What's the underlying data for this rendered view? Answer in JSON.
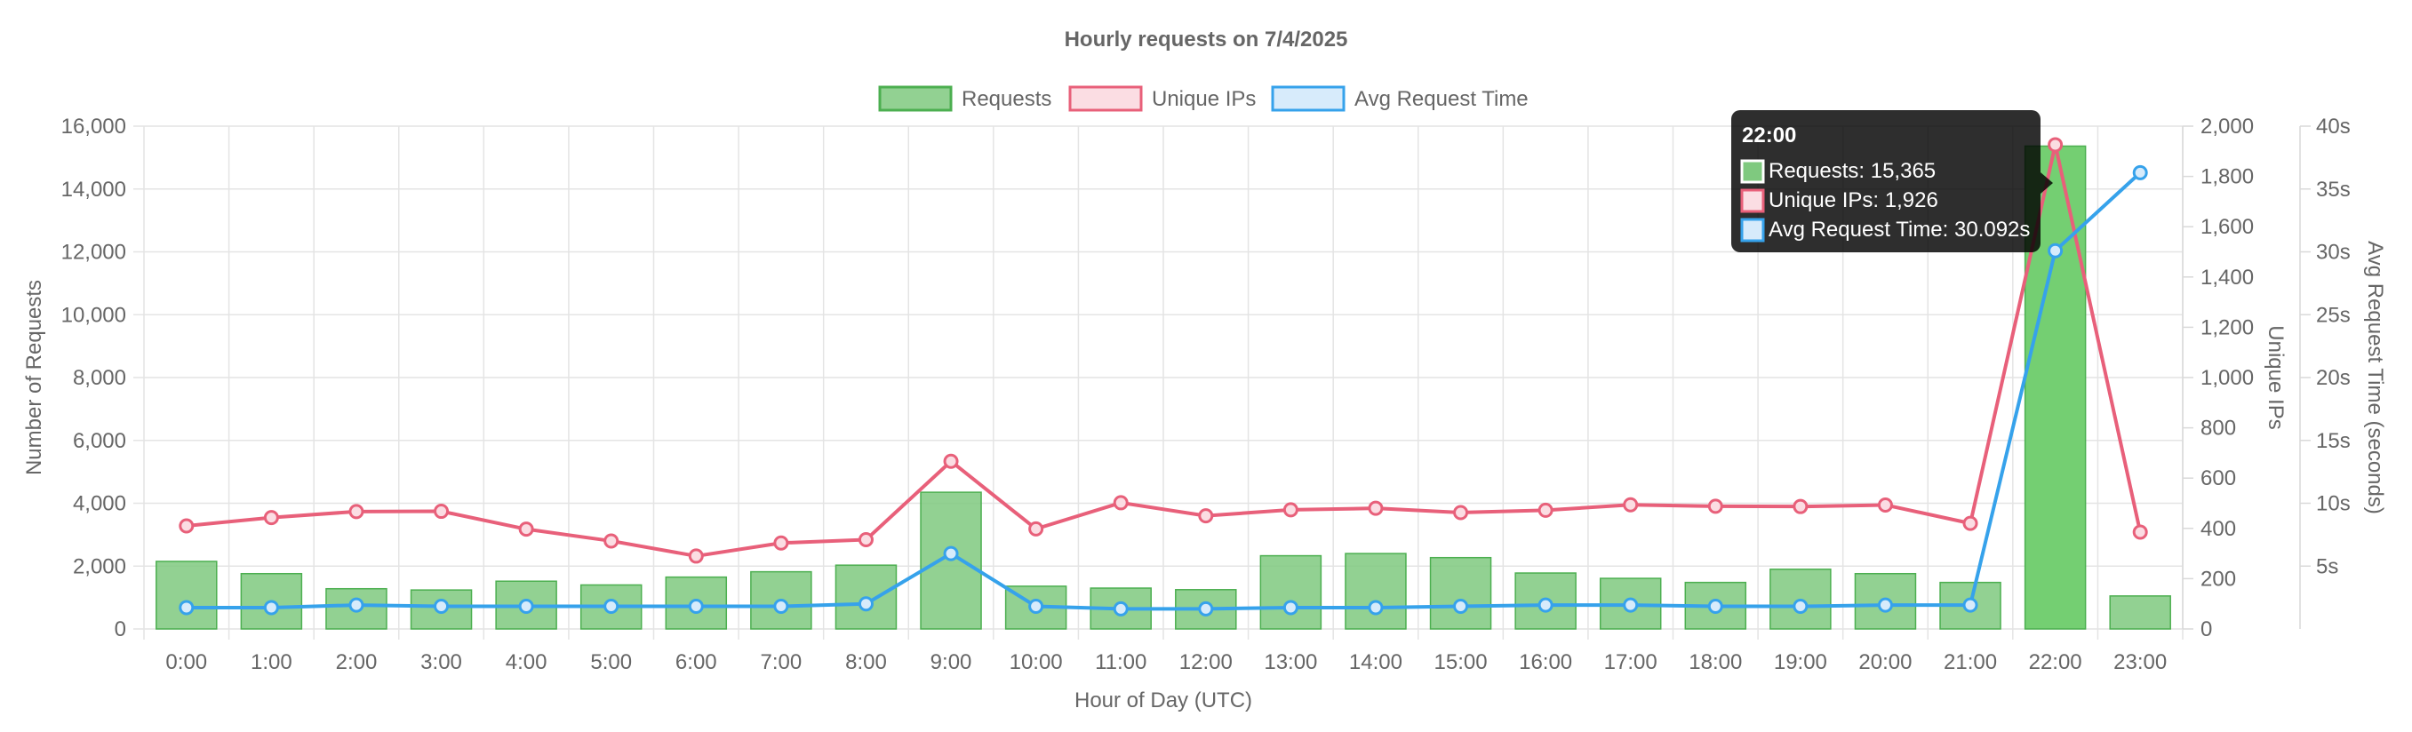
{
  "chart_data": {
    "type": "bar",
    "title": "Hourly requests on 7/4/2025",
    "xlabel": "Hour of Day (UTC)",
    "ylabel": "Number of Requests",
    "y2label": "Unique IPs",
    "y3label": "Avg Request Time (seconds)",
    "categories": [
      "0:00",
      "1:00",
      "2:00",
      "3:00",
      "4:00",
      "5:00",
      "6:00",
      "7:00",
      "8:00",
      "9:00",
      "10:00",
      "11:00",
      "12:00",
      "13:00",
      "14:00",
      "15:00",
      "16:00",
      "17:00",
      "18:00",
      "19:00",
      "20:00",
      "21:00",
      "22:00",
      "23:00"
    ],
    "ylim": [
      0,
      16000
    ],
    "y_ticks": [
      "0",
      "2,000",
      "4,000",
      "6,000",
      "8,000",
      "10,000",
      "12,000",
      "14,000",
      "16,000"
    ],
    "y2lim": [
      0,
      2000
    ],
    "y2_ticks": [
      "0",
      "200",
      "400",
      "600",
      "800",
      "1,000",
      "1,200",
      "1,400",
      "1,600",
      "1,800",
      "2,000"
    ],
    "y3lim": [
      0,
      40
    ],
    "y3_ticks": [
      "5s",
      "10s",
      "15s",
      "20s",
      "25s",
      "30s",
      "35s",
      "40s"
    ],
    "grid": true,
    "legend_position": "top",
    "series": [
      {
        "name": "Requests",
        "type": "bar",
        "axis": "y",
        "color": "#7fc97f",
        "border_color": "#4caf50",
        "values": [
          2150,
          1760,
          1280,
          1240,
          1520,
          1400,
          1650,
          1820,
          2030,
          4350,
          1360,
          1300,
          1250,
          2330,
          2400,
          2270,
          1780,
          1610,
          1480,
          1900,
          1760,
          1480,
          15365,
          1050
        ]
      },
      {
        "name": "Unique IPs",
        "type": "line",
        "axis": "y2",
        "color": "#e8607a",
        "fill": "#fbdde3",
        "values": [
          410,
          443,
          467,
          468,
          397,
          350,
          290,
          342,
          355,
          667,
          398,
          502,
          450,
          474,
          480,
          463,
          472,
          494,
          488,
          487,
          493,
          420,
          1926,
          385
        ]
      },
      {
        "name": "Avg Request Time",
        "type": "line",
        "axis": "y3",
        "color": "#36a2eb",
        "fill": "#d7ebfb",
        "values": [
          1.7,
          1.7,
          1.9,
          1.8,
          1.8,
          1.8,
          1.8,
          1.8,
          2.0,
          6.0,
          1.8,
          1.6,
          1.6,
          1.7,
          1.7,
          1.8,
          1.9,
          1.9,
          1.8,
          1.8,
          1.9,
          1.9,
          30.092,
          36.3
        ]
      }
    ],
    "tooltip": {
      "index": 22,
      "title": "22:00",
      "lines": [
        "Requests: 15,365",
        "Unique IPs: 1,926",
        "Avg Request Time: 30.092s"
      ]
    }
  }
}
